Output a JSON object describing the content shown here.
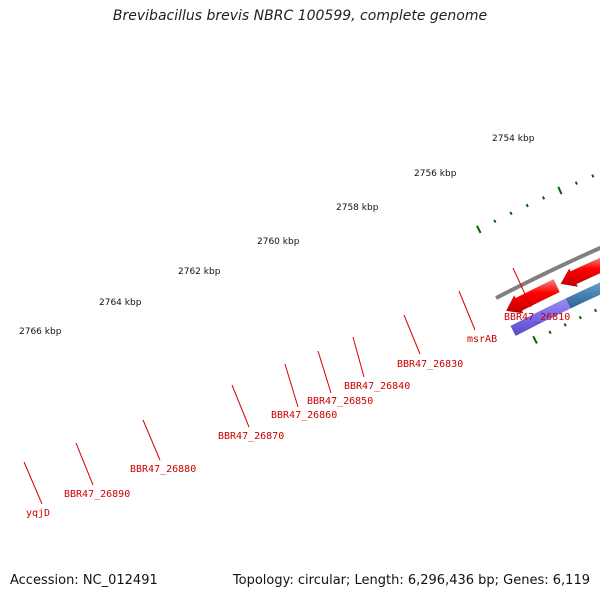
{
  "title": "Brevibacillus brevis NBRC 100599, complete genome",
  "footer": {
    "accession": "Accession: NC_012491",
    "topology": "Topology: circular; Length: 6,296,436 bp; Genes: 6,119"
  },
  "scale_labels": [
    "2754 kbp",
    "2756 kbp",
    "2758 kbp",
    "2760 kbp",
    "2762 kbp",
    "2764 kbp",
    "2766 kbp"
  ],
  "gene_labels": [
    "BBR47_26810",
    "msrAB",
    "BBR47_26830",
    "BBR47_26840",
    "BBR47_26850",
    "BBR47_26860",
    "BBR47_26870",
    "BBR47_26880",
    "BBR47_26890",
    "yqjD"
  ],
  "colors": {
    "cds": "#ff0000",
    "purple": "#7b68ee",
    "steelblue": "#4682b4",
    "olive": "#6b8e23",
    "khaki": "#bdb76b",
    "backbone": "#808080",
    "tick": "#006400",
    "label": "#cc0000"
  }
}
